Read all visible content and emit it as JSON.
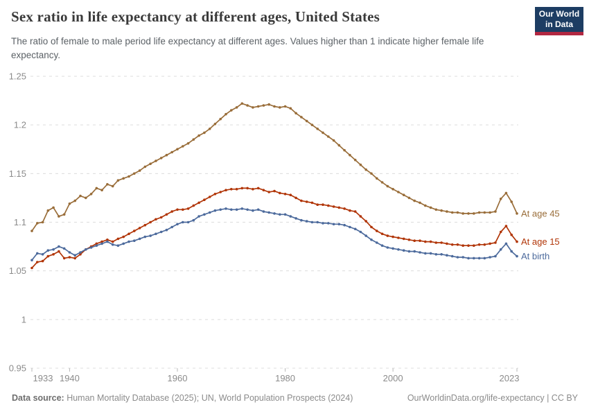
{
  "header": {
    "title": "Sex ratio in life expectancy at different ages, United States",
    "subtitle": "The ratio of female to male period life expectancy at different ages. Values higher than 1 indicate higher female life expectancy.",
    "logo": {
      "line1": "Our World",
      "line2": "in Data",
      "bg": "#1d3d63",
      "accent": "#b22741"
    }
  },
  "chart_data": {
    "type": "line",
    "title": "Sex ratio in life expectancy at different ages, United States",
    "xlabel": "",
    "ylabel": "",
    "x_ticks": [
      1933,
      1940,
      1960,
      1980,
      2000,
      2023
    ],
    "y_ticks": [
      0.95,
      1,
      1.05,
      1.1,
      1.15,
      1.2,
      1.25
    ],
    "xlim": [
      1933,
      2023
    ],
    "ylim": [
      0.95,
      1.25
    ],
    "grid": "dashed horizontal",
    "legend_position": "line-end labels, right side",
    "marker": "point markers on every yearly value",
    "years": [
      1933,
      1934,
      1935,
      1936,
      1937,
      1938,
      1939,
      1940,
      1941,
      1942,
      1943,
      1944,
      1945,
      1946,
      1947,
      1948,
      1949,
      1950,
      1951,
      1952,
      1953,
      1954,
      1955,
      1956,
      1957,
      1958,
      1959,
      1960,
      1961,
      1962,
      1963,
      1964,
      1965,
      1966,
      1967,
      1968,
      1969,
      1970,
      1971,
      1972,
      1973,
      1974,
      1975,
      1976,
      1977,
      1978,
      1979,
      1980,
      1981,
      1982,
      1983,
      1984,
      1985,
      1986,
      1987,
      1988,
      1989,
      1990,
      1991,
      1992,
      1993,
      1994,
      1995,
      1996,
      1997,
      1998,
      1999,
      2000,
      2001,
      2002,
      2003,
      2004,
      2005,
      2006,
      2007,
      2008,
      2009,
      2010,
      2011,
      2012,
      2013,
      2014,
      2015,
      2016,
      2017,
      2018,
      2019,
      2020,
      2021,
      2022,
      2023
    ],
    "series": [
      {
        "name": "At age 45",
        "color": "#996D39",
        "values": [
          1.091,
          1.099,
          1.1,
          1.112,
          1.115,
          1.106,
          1.108,
          1.119,
          1.122,
          1.127,
          1.125,
          1.129,
          1.135,
          1.133,
          1.139,
          1.137,
          1.143,
          1.145,
          1.147,
          1.15,
          1.153,
          1.157,
          1.16,
          1.163,
          1.166,
          1.169,
          1.172,
          1.175,
          1.178,
          1.181,
          1.185,
          1.189,
          1.192,
          1.196,
          1.201,
          1.206,
          1.211,
          1.215,
          1.218,
          1.222,
          1.22,
          1.218,
          1.219,
          1.22,
          1.221,
          1.219,
          1.218,
          1.219,
          1.217,
          1.212,
          1.208,
          1.204,
          1.2,
          1.196,
          1.192,
          1.188,
          1.184,
          1.179,
          1.174,
          1.169,
          1.164,
          1.159,
          1.154,
          1.15,
          1.145,
          1.141,
          1.137,
          1.134,
          1.131,
          1.128,
          1.125,
          1.122,
          1.12,
          1.117,
          1.115,
          1.113,
          1.112,
          1.111,
          1.11,
          1.11,
          1.109,
          1.109,
          1.109,
          1.11,
          1.11,
          1.11,
          1.111,
          1.124,
          1.13,
          1.121,
          1.109
        ]
      },
      {
        "name": "At age 15",
        "color": "#B13507",
        "values": [
          1.053,
          1.059,
          1.06,
          1.065,
          1.067,
          1.07,
          1.063,
          1.064,
          1.063,
          1.067,
          1.072,
          1.075,
          1.078,
          1.08,
          1.082,
          1.08,
          1.083,
          1.085,
          1.088,
          1.091,
          1.094,
          1.097,
          1.1,
          1.103,
          1.105,
          1.108,
          1.111,
          1.113,
          1.113,
          1.114,
          1.117,
          1.12,
          1.123,
          1.126,
          1.129,
          1.131,
          1.133,
          1.134,
          1.134,
          1.135,
          1.135,
          1.134,
          1.135,
          1.133,
          1.131,
          1.132,
          1.13,
          1.129,
          1.128,
          1.125,
          1.122,
          1.121,
          1.12,
          1.118,
          1.118,
          1.117,
          1.116,
          1.115,
          1.114,
          1.112,
          1.111,
          1.106,
          1.101,
          1.095,
          1.091,
          1.088,
          1.086,
          1.085,
          1.084,
          1.083,
          1.082,
          1.081,
          1.081,
          1.08,
          1.08,
          1.079,
          1.079,
          1.078,
          1.077,
          1.077,
          1.076,
          1.076,
          1.076,
          1.077,
          1.077,
          1.078,
          1.079,
          1.09,
          1.096,
          1.087,
          1.08
        ]
      },
      {
        "name": "At birth",
        "color": "#4C6A9C",
        "values": [
          1.061,
          1.068,
          1.067,
          1.071,
          1.072,
          1.075,
          1.073,
          1.069,
          1.066,
          1.069,
          1.072,
          1.074,
          1.076,
          1.078,
          1.08,
          1.077,
          1.076,
          1.078,
          1.08,
          1.081,
          1.083,
          1.085,
          1.086,
          1.088,
          1.09,
          1.092,
          1.095,
          1.098,
          1.1,
          1.1,
          1.102,
          1.106,
          1.108,
          1.11,
          1.112,
          1.113,
          1.114,
          1.113,
          1.113,
          1.114,
          1.113,
          1.112,
          1.113,
          1.111,
          1.11,
          1.109,
          1.108,
          1.108,
          1.106,
          1.104,
          1.102,
          1.101,
          1.1,
          1.1,
          1.099,
          1.099,
          1.098,
          1.098,
          1.097,
          1.095,
          1.093,
          1.09,
          1.086,
          1.082,
          1.079,
          1.076,
          1.074,
          1.073,
          1.072,
          1.071,
          1.07,
          1.07,
          1.069,
          1.068,
          1.068,
          1.067,
          1.067,
          1.066,
          1.065,
          1.064,
          1.064,
          1.063,
          1.063,
          1.063,
          1.063,
          1.064,
          1.065,
          1.072,
          1.078,
          1.07,
          1.065
        ]
      }
    ]
  },
  "footer": {
    "datasource_label": "Data source:",
    "datasource_text": " Human Mortality Database (2025); UN, World Population Prospects (2024)",
    "credit": "OurWorldinData.org/life-expectancy | CC BY"
  }
}
